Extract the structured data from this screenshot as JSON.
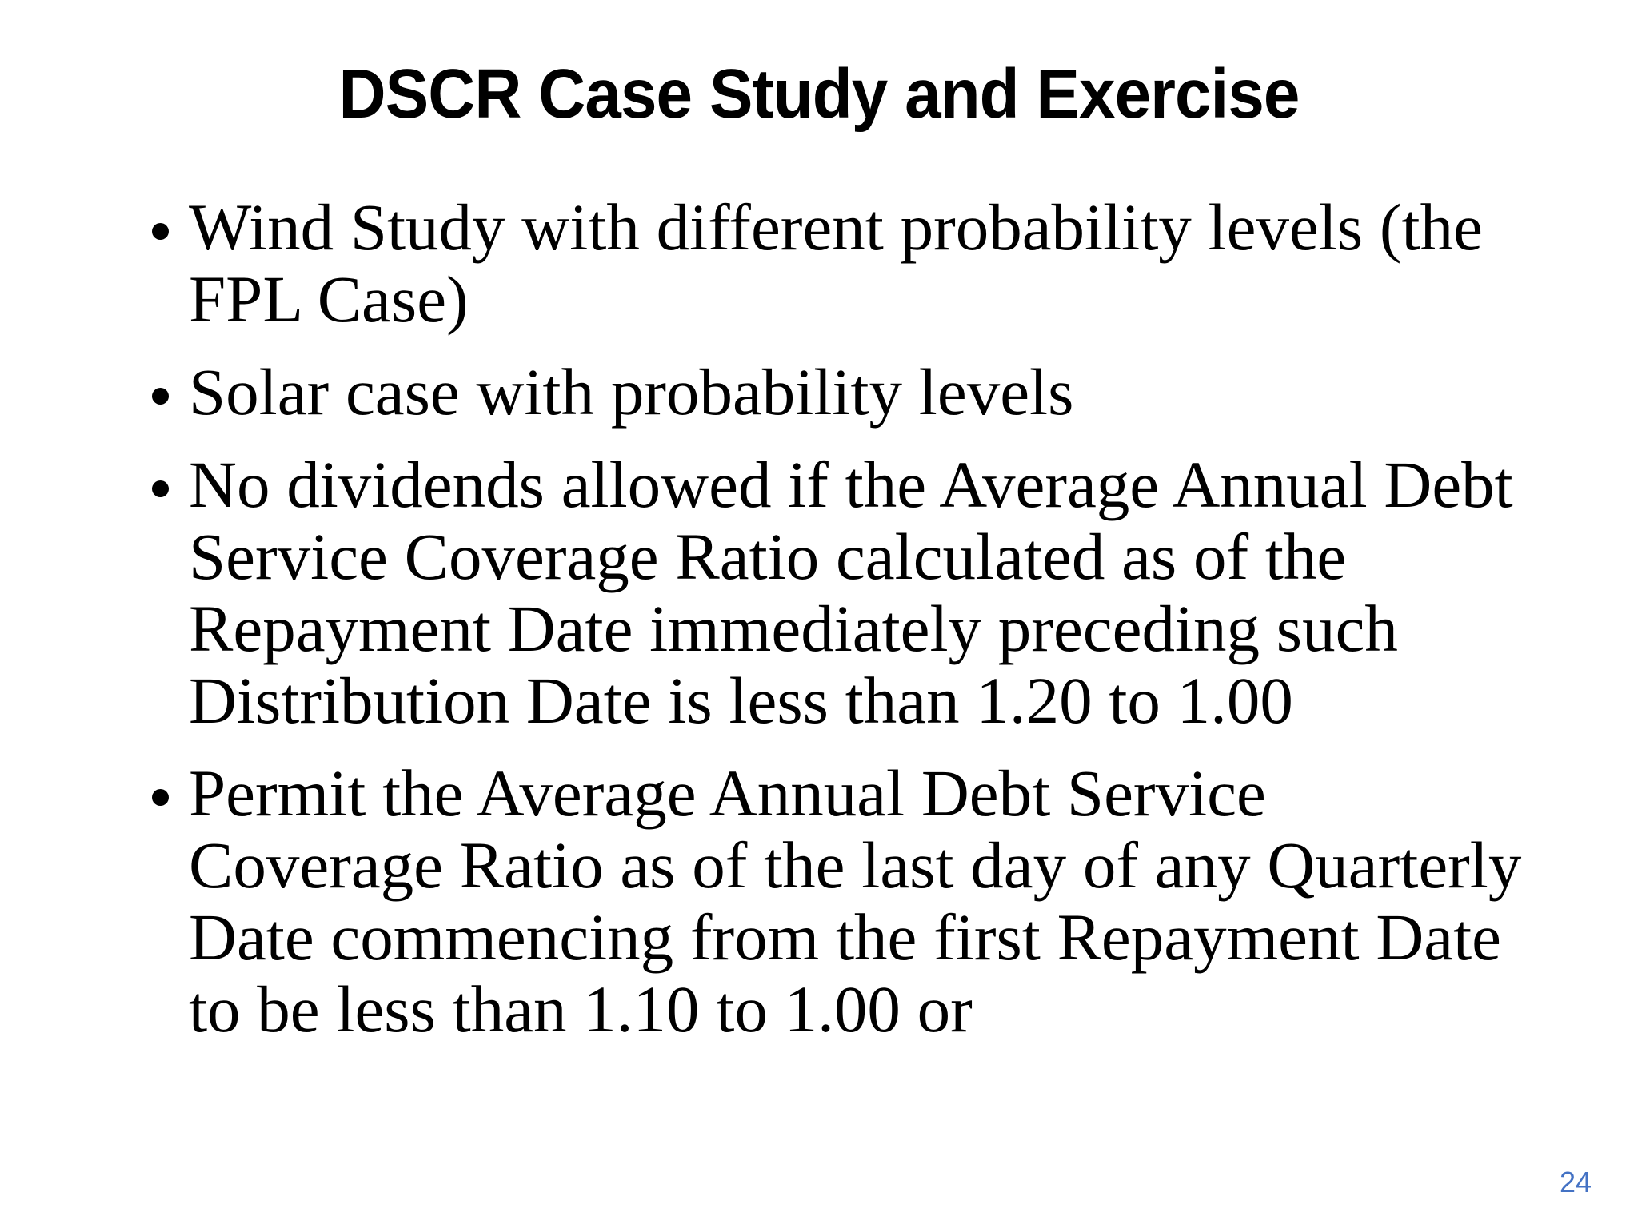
{
  "slide": {
    "title": "DSCR Case Study and Exercise",
    "bullets": [
      {
        "lines": [
          "Wind Study with different probability levels (the",
          "FPL Case)"
        ]
      },
      {
        "lines": [
          "Solar case with probability levels"
        ]
      },
      {
        "lines": [
          "No dividends allowed if the Average Annual Debt",
          "Service Coverage Ratio calculated as of the",
          "Repayment Date immediately preceding such",
          "Distribution Date is less than 1.20 to 1.00"
        ]
      },
      {
        "lines": [
          "Permit the Average Annual Debt Service",
          "Coverage Ratio as of the last day of any Quarterly",
          "Date commencing from the first Repayment Date",
          "to be less than 1.10 to 1.00 or"
        ]
      }
    ],
    "page_number": "24",
    "colors": {
      "background": "#ffffff",
      "text": "#000000",
      "page_number": "#4472c4"
    }
  }
}
